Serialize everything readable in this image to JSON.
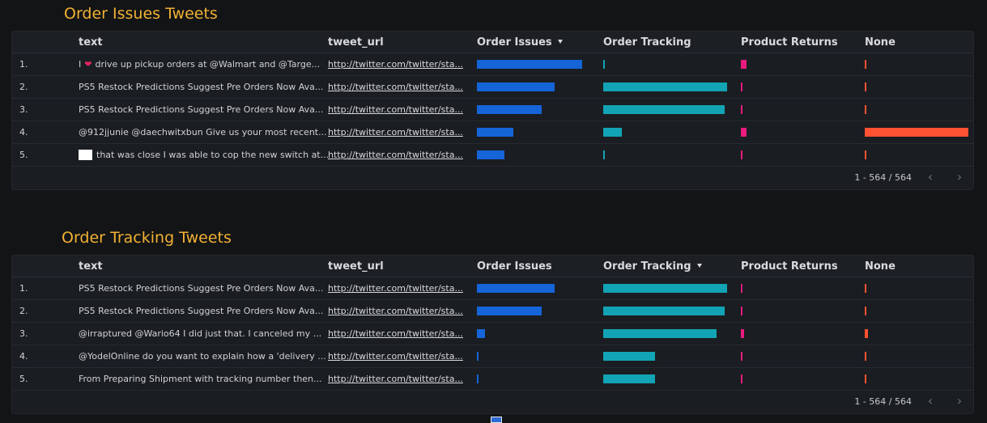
{
  "colors": {
    "order_issues": "#1564d8",
    "order_tracking": "#12a3b4",
    "product_returns": "#ea1a7f",
    "none": "#ff5232"
  },
  "tables": [
    {
      "title": "Order Issues Tweets",
      "sorted_column": "order_issues",
      "columns": {
        "text": "text",
        "tweet_url": "tweet_url",
        "order_issues": "Order Issues",
        "order_tracking": "Order Tracking",
        "product_returns": "Product Returns",
        "none": "None"
      },
      "rows": [
        {
          "num": "1.",
          "prefix_icon": "heart-icon",
          "pre": "I",
          "text": "drive up pickup orders at @Walmart and @Targe...",
          "url": "http://twitter.com/twitter/sta...",
          "values": {
            "order_issues": 0.92,
            "order_tracking": 0.01,
            "product_returns": 0.05,
            "none": 0.01
          }
        },
        {
          "num": "2.",
          "text": "PS5 Restock Predictions Suggest Pre Orders Now Ava...",
          "url": "http://twitter.com/twitter/sta...",
          "values": {
            "order_issues": 0.68,
            "order_tracking": 0.99,
            "product_returns": 0.01,
            "none": 0.01
          }
        },
        {
          "num": "3.",
          "text": "PS5 Restock Predictions Suggest Pre Orders Now Ava...",
          "url": "http://twitter.com/twitter/sta...",
          "values": {
            "order_issues": 0.57,
            "order_tracking": 0.97,
            "product_returns": 0.01,
            "none": 0.01
          }
        },
        {
          "num": "4.",
          "text": "@912jjunie @daechwitxbun Give us your most recent...",
          "url": "http://twitter.com/twitter/sta...",
          "values": {
            "order_issues": 0.32,
            "order_tracking": 0.15,
            "product_returns": 0.05,
            "none": 1.0
          }
        },
        {
          "num": "5.",
          "prefix_icon": "redacted",
          "text": "that was close I was able to cop the new switch at...",
          "url": "http://twitter.com/twitter/sta...",
          "values": {
            "order_issues": 0.24,
            "order_tracking": 0.01,
            "product_returns": 0.01,
            "none": 0.01
          }
        }
      ],
      "pagination": "1 - 564 / 564"
    },
    {
      "title": "Order Tracking Tweets",
      "sorted_column": "order_tracking",
      "columns": {
        "text": "text",
        "tweet_url": "tweet_url",
        "order_issues": "Order Issues",
        "order_tracking": "Order Tracking",
        "product_returns": "Product Returns",
        "none": "None"
      },
      "rows": [
        {
          "num": "1.",
          "text": "PS5 Restock Predictions Suggest Pre Orders Now Ava...",
          "url": "http://twitter.com/twitter/sta...",
          "values": {
            "order_issues": 0.68,
            "order_tracking": 0.99,
            "product_returns": 0.01,
            "none": 0.01
          }
        },
        {
          "num": "2.",
          "text": "PS5 Restock Predictions Suggest Pre Orders Now Ava...",
          "url": "http://twitter.com/twitter/sta...",
          "values": {
            "order_issues": 0.57,
            "order_tracking": 0.97,
            "product_returns": 0.01,
            "none": 0.01
          }
        },
        {
          "num": "3.",
          "text": "@irraptured @Wario64 I did just that. I canceled my ...",
          "url": "http://twitter.com/twitter/sta...",
          "values": {
            "order_issues": 0.07,
            "order_tracking": 0.9,
            "product_returns": 0.03,
            "none": 0.03
          }
        },
        {
          "num": "4.",
          "text": "@YodelOnline do you want to explain how a 'delivery ...",
          "url": "http://twitter.com/twitter/sta...",
          "values": {
            "order_issues": 0.01,
            "order_tracking": 0.41,
            "product_returns": 0.01,
            "none": 0.01
          }
        },
        {
          "num": "5.",
          "text": "From Preparing Shipment with tracking number then...",
          "url": "http://twitter.com/twitter/sta...",
          "values": {
            "order_issues": 0.01,
            "order_tracking": 0.41,
            "product_returns": 0.01,
            "none": 0.01
          }
        }
      ],
      "pagination": "1 - 564 / 564"
    }
  ]
}
